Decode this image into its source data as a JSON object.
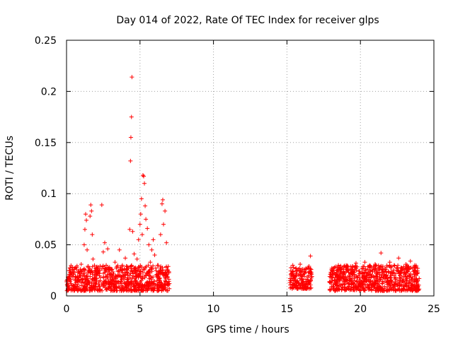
{
  "chart_data": {
    "type": "scatter",
    "title": "Day 014 of 2022, Rate Of TEC Index for receiver glps",
    "xlabel": "GPS time / hours",
    "ylabel": "ROTI / TECUs",
    "xlim": [
      0,
      25
    ],
    "ylim": [
      0,
      0.25
    ],
    "x_ticks": [
      0,
      5,
      10,
      15,
      20,
      25
    ],
    "y_ticks": [
      0,
      0.05,
      0.1,
      0.15,
      0.2,
      0.25
    ],
    "x_tick_labels": [
      "0",
      "5",
      "10",
      "15",
      "20",
      "25"
    ],
    "y_tick_labels": [
      "0",
      "0.05",
      "0.1",
      "0.15",
      "0.2",
      "0.25"
    ],
    "grid": true,
    "marker": "+",
    "series": [
      {
        "name": "ROTI",
        "color": "#ff0000",
        "points": [
          [
            0.1,
            0.012
          ],
          [
            0.2,
            0.021
          ],
          [
            0.3,
            0.016
          ],
          [
            0.4,
            0.025
          ],
          [
            0.5,
            0.01
          ],
          [
            0.6,
            0.019
          ],
          [
            0.7,
            0.028
          ],
          [
            0.8,
            0.014
          ],
          [
            0.9,
            0.022
          ],
          [
            1.0,
            0.031
          ],
          [
            1.1,
            0.017
          ],
          [
            1.2,
            0.05
          ],
          [
            1.25,
            0.065
          ],
          [
            1.3,
            0.08
          ],
          [
            1.35,
            0.074
          ],
          [
            1.4,
            0.045
          ],
          [
            1.5,
            0.024
          ],
          [
            1.6,
            0.078
          ],
          [
            1.65,
            0.089
          ],
          [
            1.7,
            0.083
          ],
          [
            1.75,
            0.06
          ],
          [
            1.8,
            0.036
          ],
          [
            1.9,
            0.02
          ],
          [
            2.0,
            0.012
          ],
          [
            2.1,
            0.027
          ],
          [
            2.3,
            0.018
          ],
          [
            2.4,
            0.089
          ],
          [
            2.5,
            0.043
          ],
          [
            2.6,
            0.052
          ],
          [
            2.7,
            0.03
          ],
          [
            2.8,
            0.046
          ],
          [
            2.9,
            0.021
          ],
          [
            3.0,
            0.015
          ],
          [
            3.1,
            0.026
          ],
          [
            3.2,
            0.011
          ],
          [
            3.3,
            0.033
          ],
          [
            3.4,
            0.019
          ],
          [
            3.5,
            0.024
          ],
          [
            3.6,
            0.045
          ],
          [
            3.7,
            0.014
          ],
          [
            3.8,
            0.03
          ],
          [
            3.9,
            0.02
          ],
          [
            4.0,
            0.037
          ],
          [
            4.1,
            0.026
          ],
          [
            4.2,
            0.012
          ],
          [
            4.3,
            0.065
          ],
          [
            4.35,
            0.132
          ],
          [
            4.38,
            0.155
          ],
          [
            4.42,
            0.175
          ],
          [
            4.45,
            0.214
          ],
          [
            4.5,
            0.063
          ],
          [
            4.6,
            0.041
          ],
          [
            4.7,
            0.022
          ],
          [
            4.8,
            0.036
          ],
          [
            4.9,
            0.055
          ],
          [
            5.0,
            0.07
          ],
          [
            5.05,
            0.08
          ],
          [
            5.1,
            0.095
          ],
          [
            5.15,
            0.06
          ],
          [
            5.2,
            0.118
          ],
          [
            5.25,
            0.117
          ],
          [
            5.3,
            0.11
          ],
          [
            5.35,
            0.088
          ],
          [
            5.4,
            0.075
          ],
          [
            5.5,
            0.066
          ],
          [
            5.6,
            0.05
          ],
          [
            5.7,
            0.033
          ],
          [
            5.8,
            0.045
          ],
          [
            5.9,
            0.055
          ],
          [
            6.0,
            0.04
          ],
          [
            6.1,
            0.02
          ],
          [
            6.2,
            0.03
          ],
          [
            6.3,
            0.016
          ],
          [
            6.4,
            0.06
          ],
          [
            6.5,
            0.09
          ],
          [
            6.55,
            0.094
          ],
          [
            6.6,
            0.07
          ],
          [
            6.7,
            0.083
          ],
          [
            6.8,
            0.052
          ],
          [
            6.9,
            0.025
          ],
          [
            7.0,
            0.012
          ],
          [
            15.2,
            0.013
          ],
          [
            15.3,
            0.022
          ],
          [
            15.4,
            0.03
          ],
          [
            15.5,
            0.017
          ],
          [
            15.6,
            0.01
          ],
          [
            15.7,
            0.025
          ],
          [
            15.8,
            0.02
          ],
          [
            15.9,
            0.031
          ],
          [
            16.0,
            0.015
          ],
          [
            16.1,
            0.021
          ],
          [
            16.2,
            0.011
          ],
          [
            16.3,
            0.026
          ],
          [
            16.4,
            0.016
          ],
          [
            16.5,
            0.029
          ],
          [
            16.6,
            0.039
          ],
          [
            16.7,
            0.019
          ],
          [
            17.9,
            0.014
          ],
          [
            18.0,
            0.022
          ],
          [
            18.1,
            0.018
          ],
          [
            18.2,
            0.027
          ],
          [
            18.3,
            0.012
          ],
          [
            18.4,
            0.02
          ],
          [
            18.5,
            0.03
          ],
          [
            18.6,
            0.016
          ],
          [
            18.7,
            0.024
          ],
          [
            18.8,
            0.011
          ],
          [
            18.9,
            0.019
          ],
          [
            19.0,
            0.028
          ],
          [
            19.1,
            0.015
          ],
          [
            19.2,
            0.023
          ],
          [
            19.3,
            0.017
          ],
          [
            19.4,
            0.026
          ],
          [
            19.5,
            0.013
          ],
          [
            19.6,
            0.021
          ],
          [
            19.7,
            0.032
          ],
          [
            19.8,
            0.018
          ],
          [
            19.9,
            0.024
          ],
          [
            20.0,
            0.012
          ],
          [
            20.1,
            0.027
          ],
          [
            20.2,
            0.02
          ],
          [
            20.3,
            0.033
          ],
          [
            20.4,
            0.016
          ],
          [
            20.5,
            0.022
          ],
          [
            20.6,
            0.029
          ],
          [
            20.7,
            0.014
          ],
          [
            20.8,
            0.025
          ],
          [
            20.9,
            0.019
          ],
          [
            21.0,
            0.031
          ],
          [
            21.1,
            0.015
          ],
          [
            21.2,
            0.023
          ],
          [
            21.3,
            0.028
          ],
          [
            21.4,
            0.042
          ],
          [
            21.5,
            0.012
          ],
          [
            21.6,
            0.02
          ],
          [
            21.7,
            0.026
          ],
          [
            21.8,
            0.017
          ],
          [
            21.9,
            0.024
          ],
          [
            22.0,
            0.033
          ],
          [
            22.1,
            0.014
          ],
          [
            22.2,
            0.022
          ],
          [
            22.3,
            0.03
          ],
          [
            22.4,
            0.018
          ],
          [
            22.5,
            0.025
          ],
          [
            22.6,
            0.037
          ],
          [
            22.7,
            0.02
          ],
          [
            22.8,
            0.027
          ],
          [
            22.9,
            0.015
          ],
          [
            23.0,
            0.023
          ],
          [
            23.1,
            0.031
          ],
          [
            23.2,
            0.019
          ],
          [
            23.3,
            0.026
          ],
          [
            23.4,
            0.034
          ],
          [
            23.5,
            0.016
          ],
          [
            23.6,
            0.024
          ],
          [
            23.7,
            0.03
          ],
          [
            23.8,
            0.02
          ],
          [
            23.9,
            0.027
          ],
          [
            24.0,
            0.017
          ]
        ],
        "dense_bands": [
          {
            "x_from": 0.0,
            "x_to": 7.0,
            "y_lo": 0.005,
            "y_hi": 0.03
          },
          {
            "x_from": 15.2,
            "x_to": 16.7,
            "y_lo": 0.007,
            "y_hi": 0.028
          },
          {
            "x_from": 17.9,
            "x_to": 24.0,
            "y_lo": 0.005,
            "y_hi": 0.03
          }
        ]
      }
    ]
  }
}
